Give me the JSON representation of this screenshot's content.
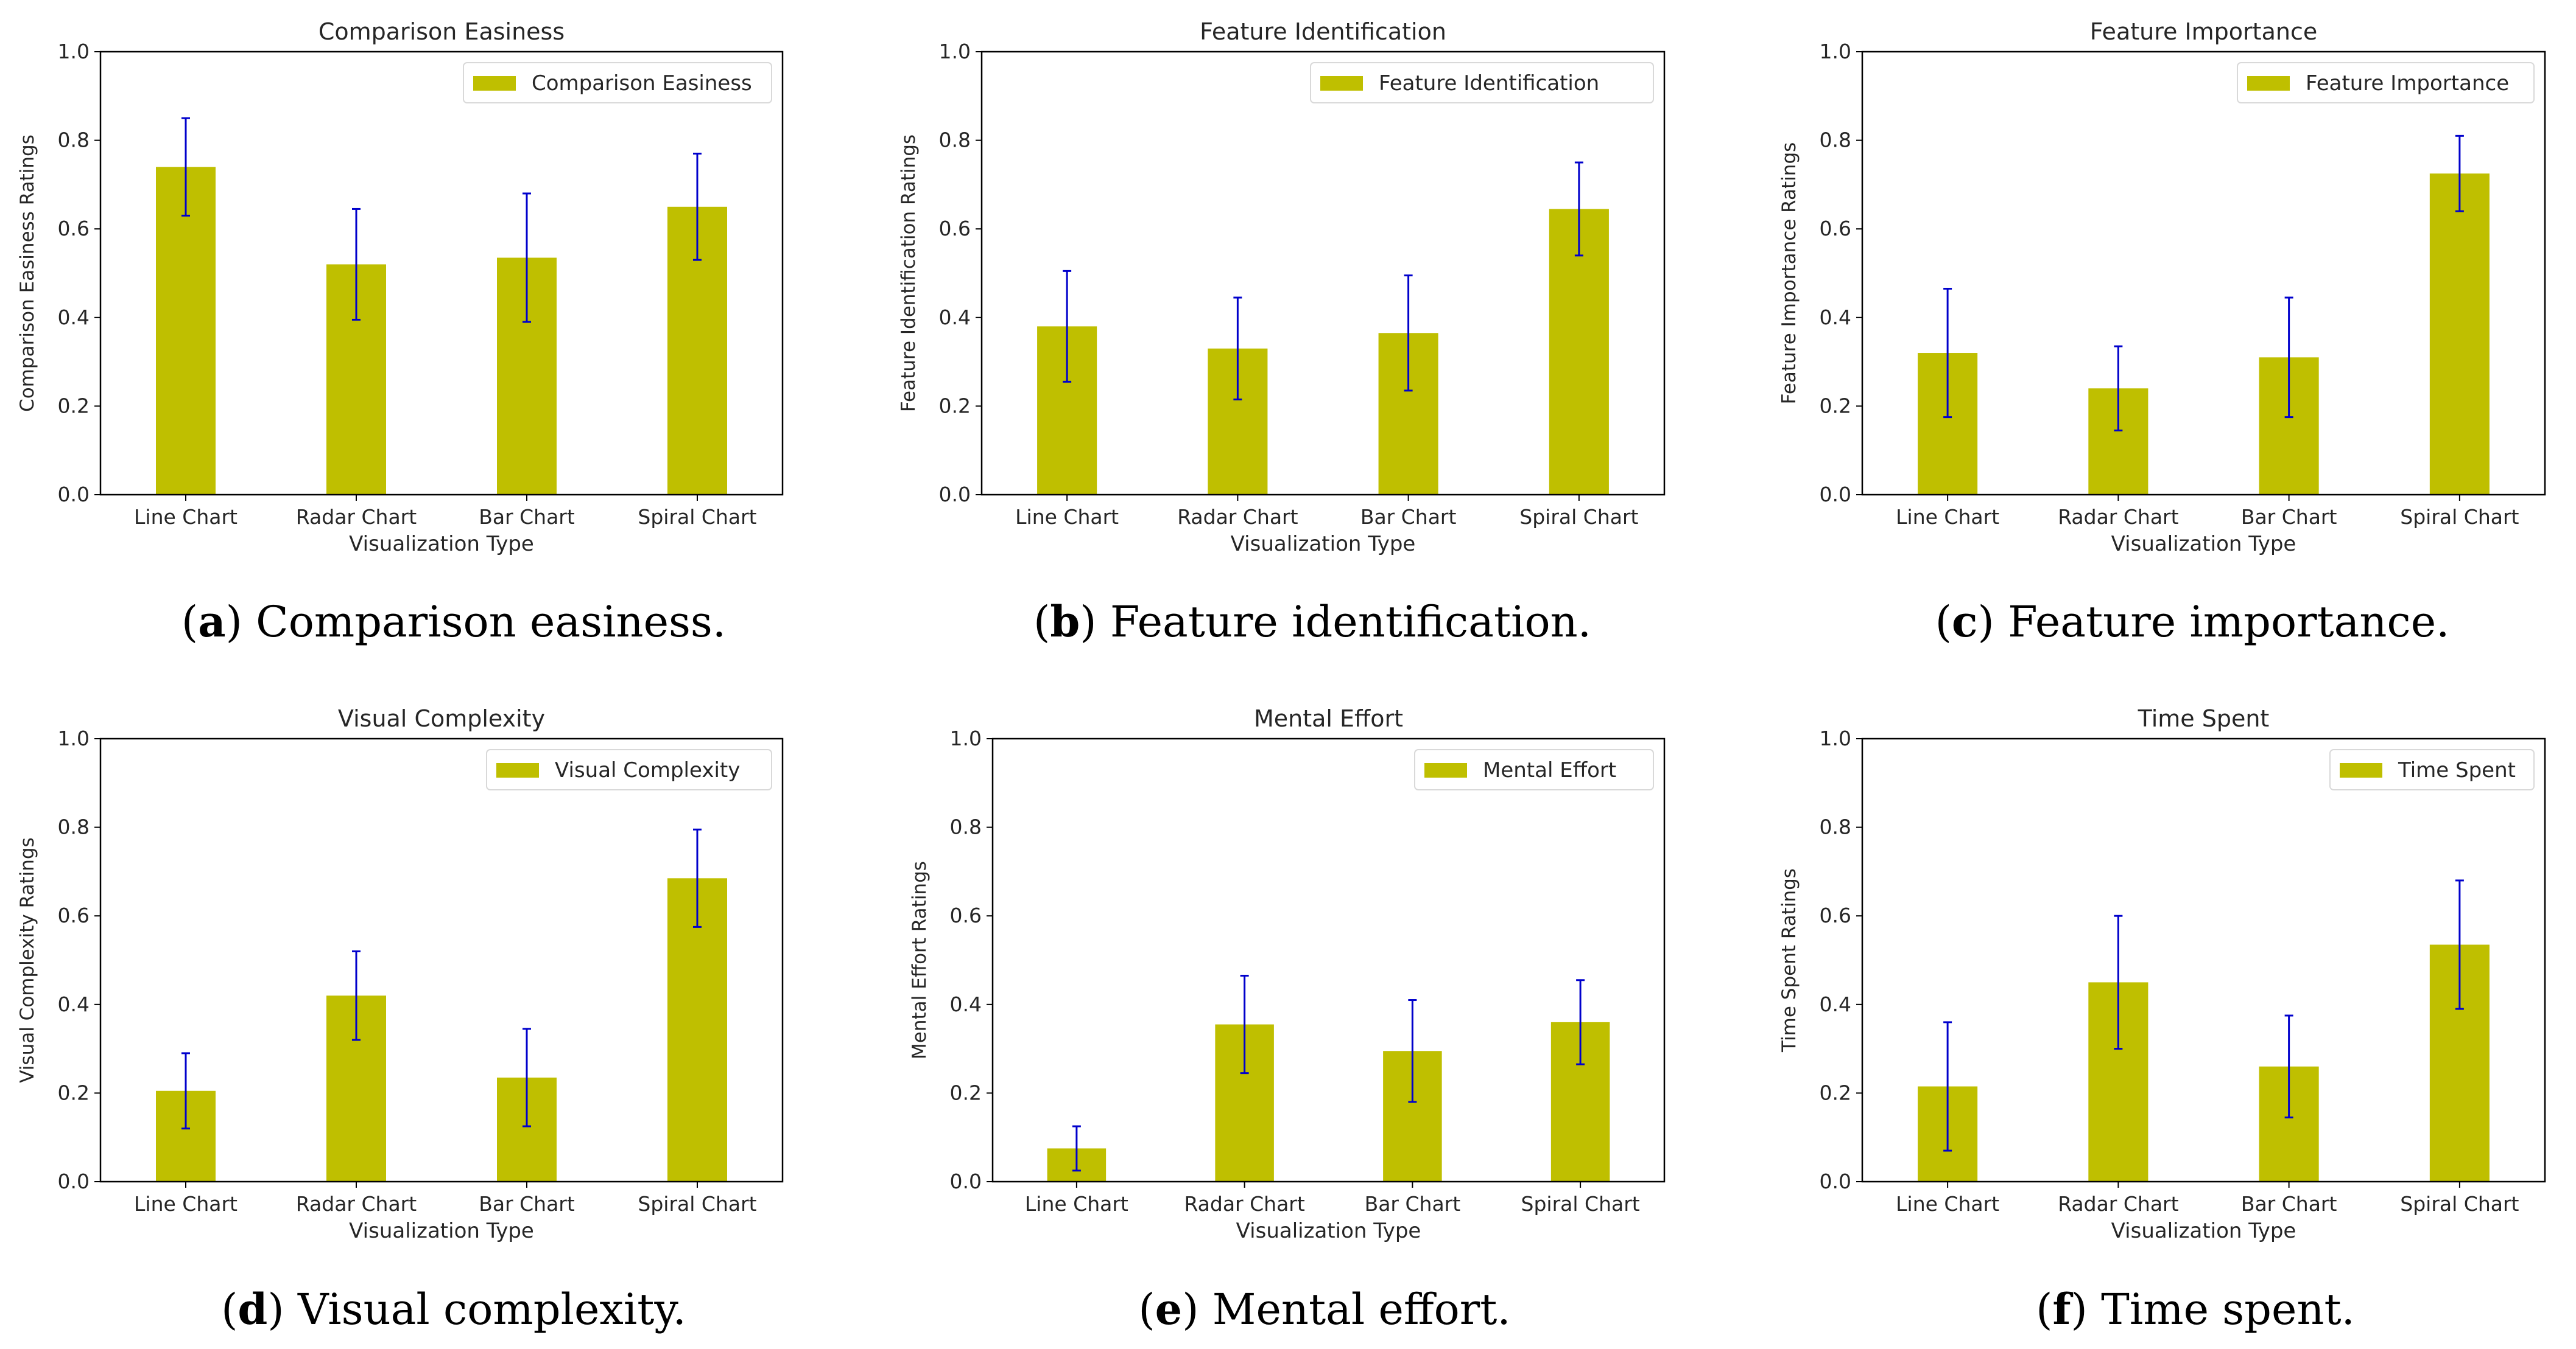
{
  "colors": {
    "bar": "#bfbf00",
    "error_bar": "#0000cc",
    "axis": "#000000",
    "text": "#262626"
  },
  "captions": [
    {
      "letter": "a",
      "text": "Comparison easiness."
    },
    {
      "letter": "b",
      "text": "Feature identification."
    },
    {
      "letter": "c",
      "text": "Feature importance."
    },
    {
      "letter": "d",
      "text": "Visual complexity."
    },
    {
      "letter": "e",
      "text": "Mental effort."
    },
    {
      "letter": "f",
      "text": "Time spent."
    }
  ],
  "chart_data": [
    {
      "type": "bar",
      "title": "Comparison Easiness",
      "xlabel": "Visualization Type",
      "ylabel": "Comparison Easiness Ratings",
      "legend": "Comparison Easiness",
      "legend_position": "top-right",
      "categories": [
        "Line Chart",
        "Radar Chart",
        "Bar Chart",
        "Spiral Chart"
      ],
      "values": [
        0.74,
        0.52,
        0.535,
        0.65
      ],
      "errors": [
        0.11,
        0.125,
        0.145,
        0.12
      ],
      "ylim": [
        0,
        1
      ],
      "yticks": [
        "0.0",
        "0.2",
        "0.4",
        "0.6",
        "0.8",
        "1.0"
      ]
    },
    {
      "type": "bar",
      "title": "Feature Identification",
      "xlabel": "Visualization Type",
      "ylabel": "Feature Identification Ratings",
      "legend": "Feature Identification",
      "legend_position": "top-right",
      "categories": [
        "Line Chart",
        "Radar Chart",
        "Bar Chart",
        "Spiral Chart"
      ],
      "values": [
        0.38,
        0.33,
        0.365,
        0.645
      ],
      "errors": [
        0.125,
        0.115,
        0.13,
        0.105
      ],
      "ylim": [
        0,
        1
      ],
      "yticks": [
        "0.0",
        "0.2",
        "0.4",
        "0.6",
        "0.8",
        "1.0"
      ]
    },
    {
      "type": "bar",
      "title": "Feature Importance",
      "xlabel": "Visualization Type",
      "ylabel": "Feature Importance Ratings",
      "legend": "Feature Importance",
      "legend_position": "top-right",
      "categories": [
        "Line Chart",
        "Radar Chart",
        "Bar Chart",
        "Spiral Chart"
      ],
      "values": [
        0.32,
        0.24,
        0.31,
        0.725
      ],
      "errors": [
        0.145,
        0.095,
        0.135,
        0.085
      ],
      "ylim": [
        0,
        1
      ],
      "yticks": [
        "0.0",
        "0.2",
        "0.4",
        "0.6",
        "0.8",
        "1.0"
      ]
    },
    {
      "type": "bar",
      "title": "Visual Complexity",
      "xlabel": "Visualization Type",
      "ylabel": "Visual Complexity Ratings",
      "legend": "Visual Complexity",
      "legend_position": "top-right",
      "categories": [
        "Line Chart",
        "Radar Chart",
        "Bar Chart",
        "Spiral Chart"
      ],
      "values": [
        0.205,
        0.42,
        0.235,
        0.685
      ],
      "errors": [
        0.085,
        0.1,
        0.11,
        0.11
      ],
      "ylim": [
        0,
        1
      ],
      "yticks": [
        "0.0",
        "0.2",
        "0.4",
        "0.6",
        "0.8",
        "1.0"
      ]
    },
    {
      "type": "bar",
      "title": "Mental Effort",
      "xlabel": "Visualization Type",
      "ylabel": "Mental Effort Ratings",
      "legend": "Mental Effort",
      "legend_position": "top-right",
      "categories": [
        "Line Chart",
        "Radar Chart",
        "Bar Chart",
        "Spiral Chart"
      ],
      "values": [
        0.075,
        0.355,
        0.295,
        0.36
      ],
      "errors": [
        0.05,
        0.11,
        0.115,
        0.095
      ],
      "ylim": [
        0,
        1
      ],
      "yticks": [
        "0.0",
        "0.2",
        "0.4",
        "0.6",
        "0.8",
        "1.0"
      ]
    },
    {
      "type": "bar",
      "title": "Time Spent",
      "xlabel": "Visualization Type",
      "ylabel": "Time Spent Ratings",
      "legend": "Time Spent",
      "legend_position": "top-right",
      "categories": [
        "Line Chart",
        "Radar Chart",
        "Bar Chart",
        "Spiral Chart"
      ],
      "values": [
        0.215,
        0.45,
        0.26,
        0.535
      ],
      "errors": [
        0.145,
        0.15,
        0.115,
        0.145
      ],
      "ylim": [
        0,
        1
      ],
      "yticks": [
        "0.0",
        "0.2",
        "0.4",
        "0.6",
        "0.8",
        "1.0"
      ]
    }
  ]
}
